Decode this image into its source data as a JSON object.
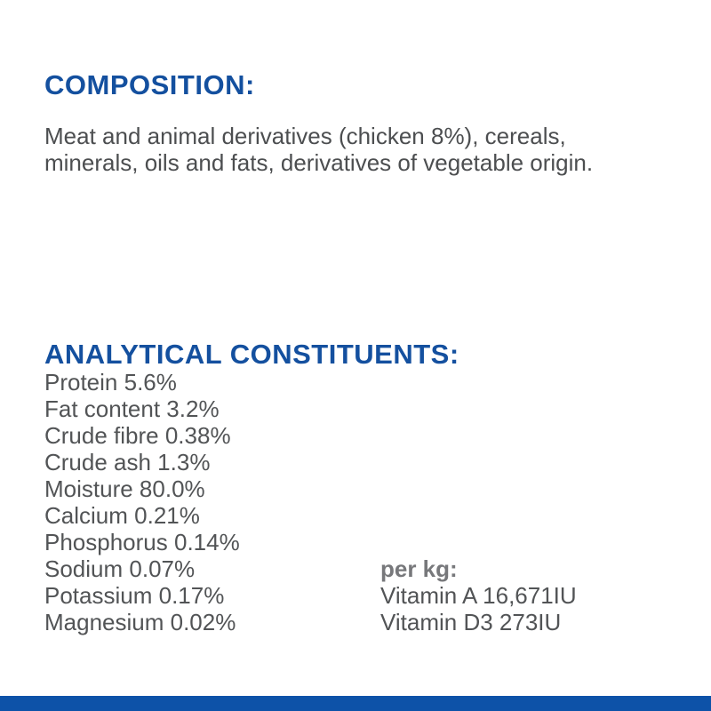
{
  "colors": {
    "heading_blue": "#14509f",
    "body_gray": "#4c4e50",
    "list_gray": "#525456",
    "per_kg_label_gray": "#77787b",
    "footer_bar_blue": "#0d52a8",
    "background": "#ffffff"
  },
  "composition": {
    "heading": "COMPOSITION:",
    "body": "Meat and animal derivatives (chicken 8%), cereals, minerals, oils and fats, derivatives of vegetable origin."
  },
  "analytical": {
    "heading": "ANALYTICAL CONSTITUENTS:",
    "constituents": [
      "Protein 5.6%",
      "Fat content 3.2%",
      "Crude fibre 0.38%",
      "Crude ash 1.3%",
      "Moisture 80.0%",
      "Calcium 0.21%",
      "Phosphorus 0.14%",
      "Sodium 0.07%",
      "Potassium 0.17%",
      "Magnesium 0.02%"
    ],
    "per_kg": {
      "label": "per kg:",
      "items": [
        "Vitamin A 16,671IU",
        "Vitamin D3 273IU"
      ]
    }
  }
}
